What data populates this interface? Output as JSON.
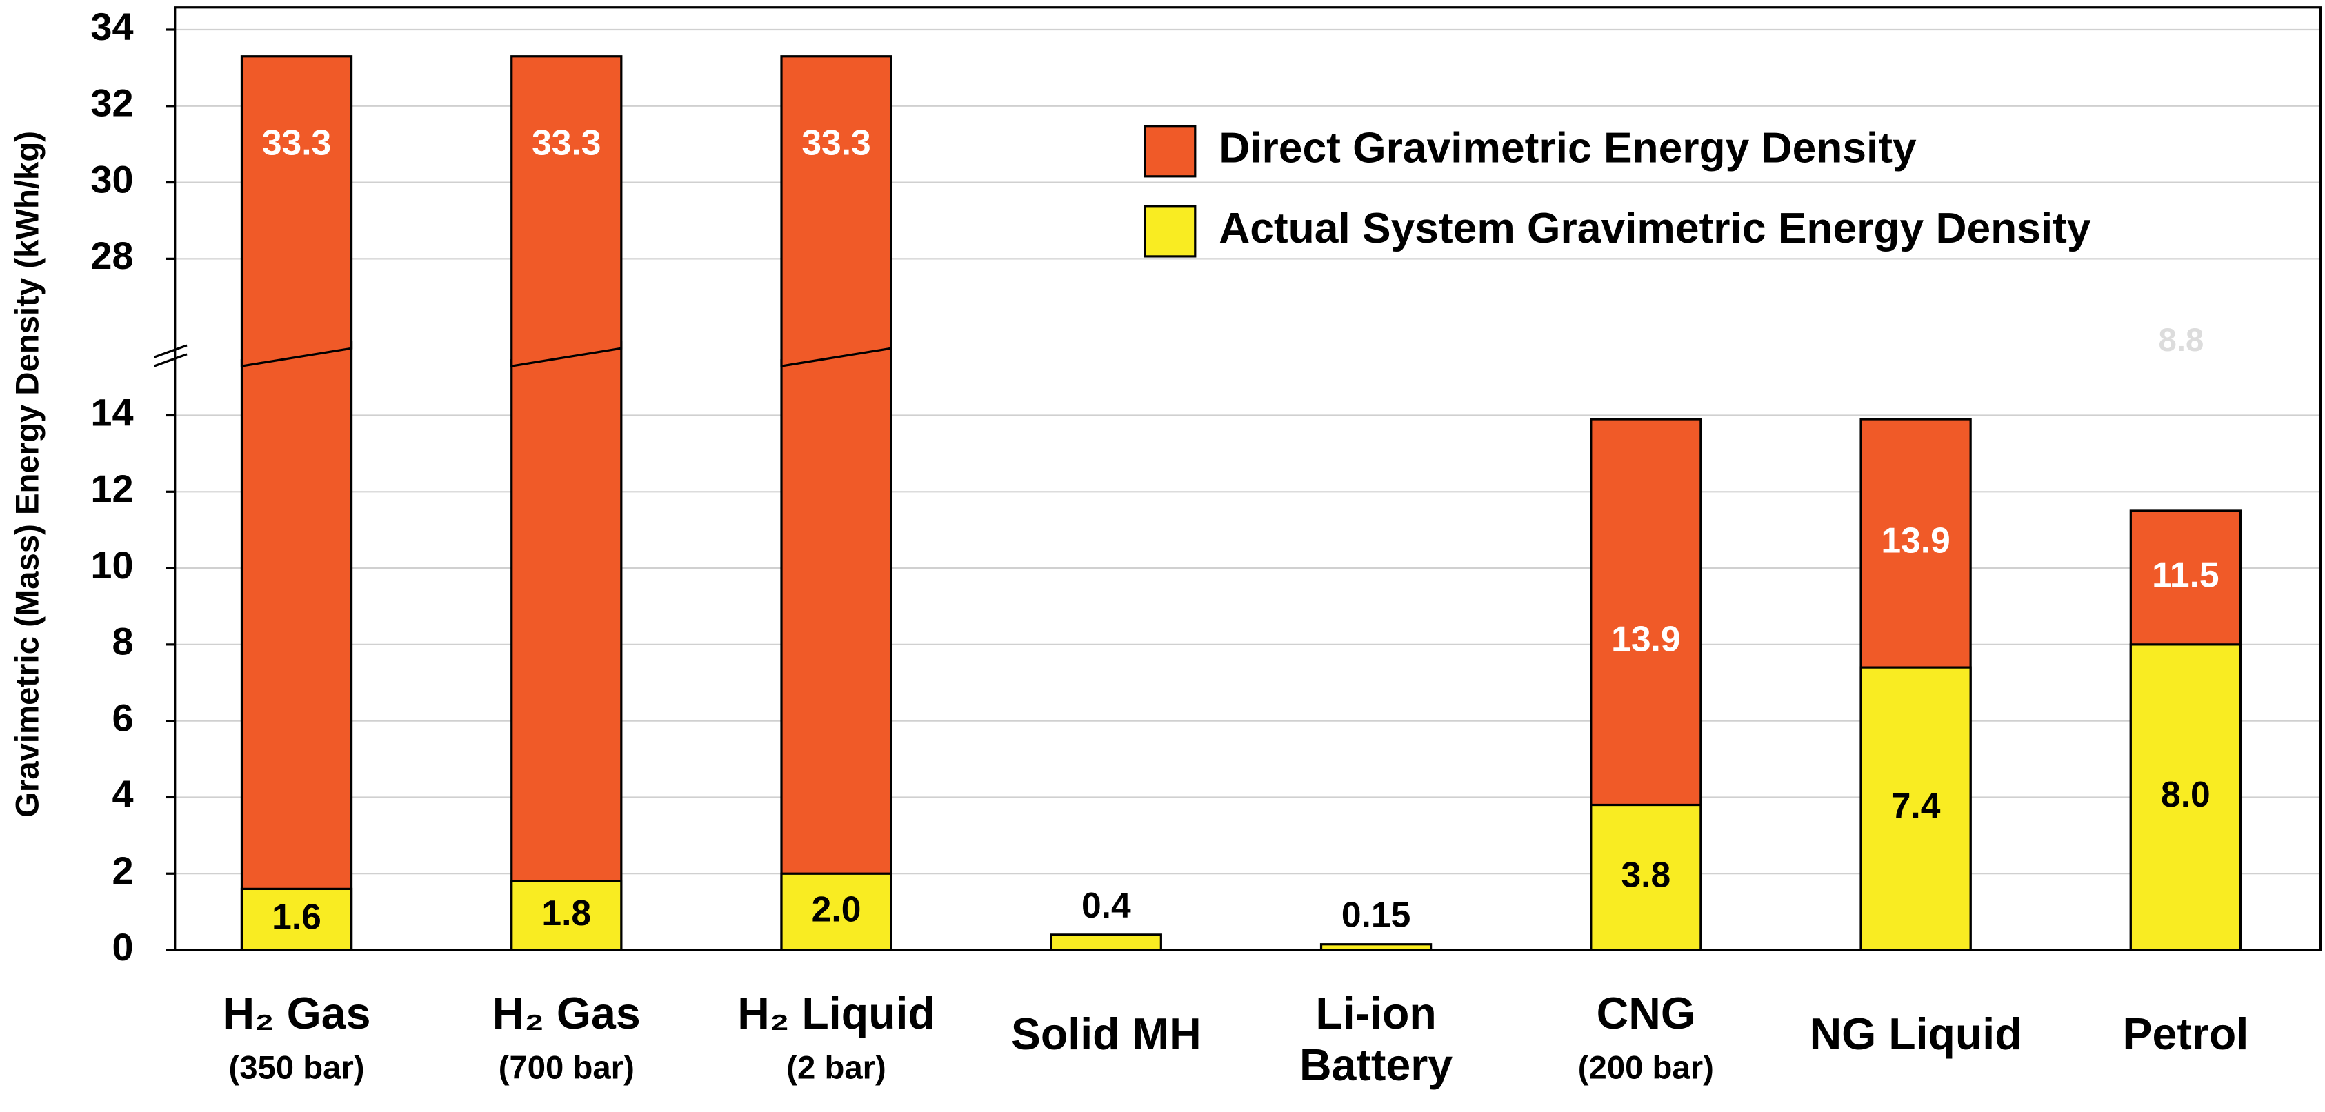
{
  "chart_data": {
    "type": "bar",
    "y_label": "Gravimetric (Mass) Energy Density (kWh/kg)",
    "categories": [
      [
        "H₂ Gas",
        "(350 bar)"
      ],
      [
        "H₂ Gas",
        "(700 bar)"
      ],
      [
        "H₂ Liquid",
        "(2 bar)"
      ],
      [
        "Solid MH"
      ],
      [
        "Li-ion",
        "Battery"
      ],
      [
        "CNG",
        "(200 bar)"
      ],
      [
        "NG Liquid"
      ],
      [
        "Petrol"
      ]
    ],
    "series": [
      {
        "name": "Direct Gravimetric Energy Density",
        "color": "#f05a28",
        "values": [
          33.3,
          33.3,
          33.3,
          null,
          null,
          13.9,
          13.9,
          11.5
        ]
      },
      {
        "name": "Actual System Gravimetric Energy Density",
        "color": "#f9ec22",
        "values": [
          1.6,
          1.8,
          2.0,
          0.4,
          0.15,
          3.8,
          7.4,
          8.0
        ],
        "value_labels": [
          "1.6",
          "1.8",
          "2.0",
          "0.4",
          "0.15",
          "3.8",
          "7.4",
          "8.0"
        ]
      }
    ],
    "annotation": "8.8",
    "ylim": [
      0,
      34
    ],
    "ybreak": [
      15.6,
      25.5
    ],
    "yticks": [
      0,
      2,
      4,
      6,
      8,
      10,
      12,
      14,
      28,
      30,
      32,
      34
    ],
    "grid": true,
    "legend": "top right"
  }
}
